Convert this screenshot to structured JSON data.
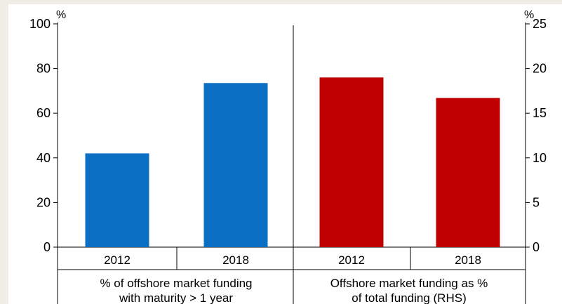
{
  "chart_data": {
    "type": "bar",
    "title": "",
    "panels": [
      {
        "axis": "left",
        "unit": "%",
        "ylim": [
          0,
          100
        ],
        "yticks": [
          "0",
          "20",
          "40",
          "60",
          "80",
          "100"
        ],
        "categories": [
          "2012",
          "2018"
        ],
        "values": [
          42,
          73.5
        ],
        "color": "#0b6fc3",
        "xlabel_lines": [
          "% of offshore market funding",
          "with maturity > 1 year"
        ]
      },
      {
        "axis": "right",
        "unit": "%",
        "ylim": [
          0,
          25
        ],
        "yticks": [
          "0",
          "5",
          "10",
          "15",
          "20",
          "25"
        ],
        "categories": [
          "2012",
          "2018"
        ],
        "values": [
          19,
          16.7
        ],
        "color": "#c00000",
        "xlabel_lines": [
          "Offshore market funding as %",
          "of total funding (RHS)"
        ]
      }
    ],
    "grid": false,
    "legend": "none"
  }
}
